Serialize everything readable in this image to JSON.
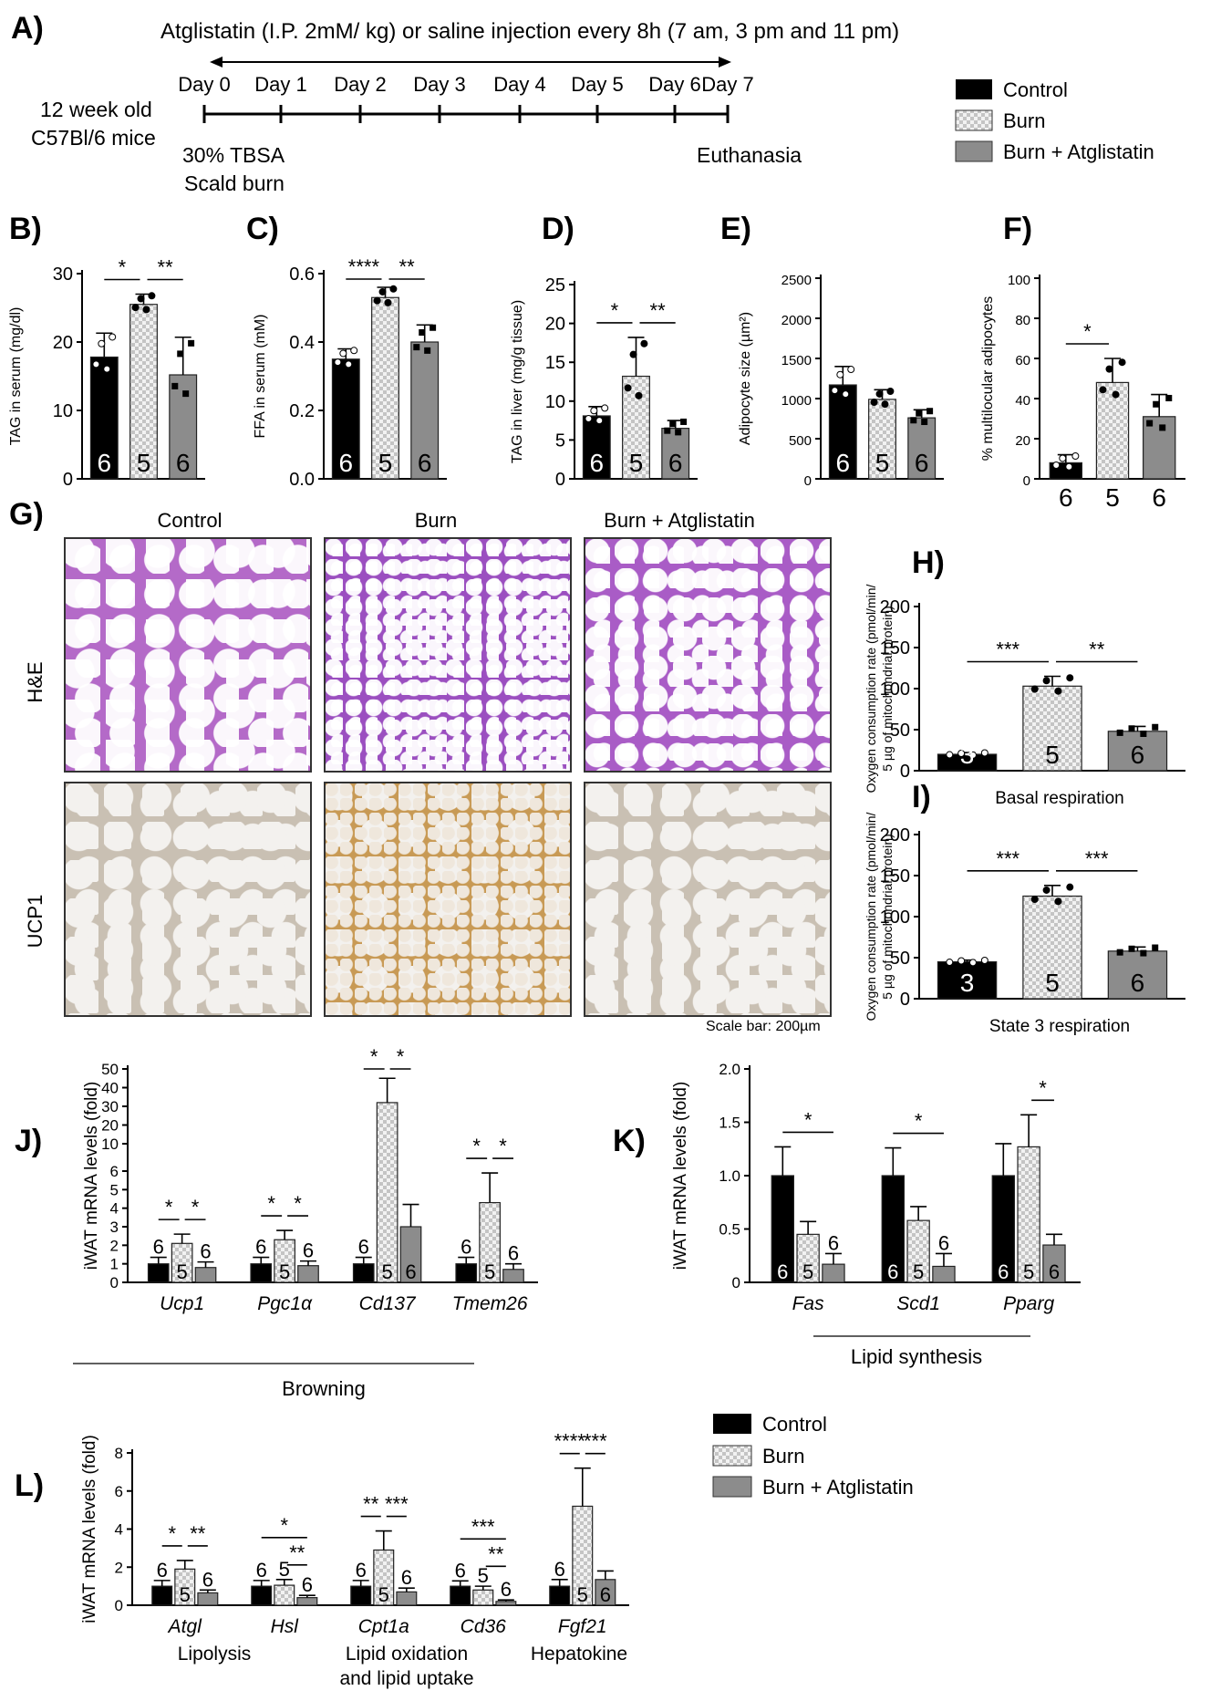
{
  "panel_a": {
    "letter": "A)",
    "treatment": "Atglistatin (I.P. 2mM/ kg) or saline injection every 8h (7 am, 3 pm and 11 pm)",
    "days": [
      "Day 0",
      "Day 1",
      "Day 2",
      "Day 3",
      "Day 4",
      "Day 5",
      "Day 6",
      "Day 7"
    ],
    "mice_line1": "12 week old",
    "mice_line2": "C57Bl/6 mice",
    "burn_line1": "30% TBSA",
    "burn_line2": "Scald burn",
    "end": "Euthanasia"
  },
  "legend_top": [
    "Control",
    "Burn",
    "Burn + Atglistatin"
  ],
  "legend_bottom": [
    "Control",
    "Burn",
    "Burn + Atglistatin"
  ],
  "colors": {
    "control": "#000000",
    "burn": "#e6e6e6",
    "atg": "#8c8c8c"
  },
  "panel_g": {
    "letter": "G)",
    "columns": [
      "Control",
      "Burn",
      "Burn + Atglistatin"
    ],
    "rows": [
      "H&E",
      "UCP1"
    ],
    "scale": "Scale bar: 200µm"
  },
  "chart_data": [
    {
      "id": "B",
      "letter": "B)",
      "type": "bar",
      "ylabel": "TAG in serum (mg/dl)",
      "ylim": [
        0,
        30
      ],
      "ticks": [
        "0",
        "10",
        "20",
        "30"
      ],
      "values": [
        17.8,
        25.5,
        15.2
      ],
      "errors": [
        3.5,
        1.5,
        5.5
      ],
      "n": [
        "6",
        "5",
        "6"
      ],
      "sig": [
        "*",
        "**"
      ]
    },
    {
      "id": "C",
      "letter": "C)",
      "type": "bar",
      "ylabel": "FFA in serum (mM)",
      "ylim": [
        0,
        0.6
      ],
      "ticks": [
        "0.0",
        "0.2",
        "0.4",
        "0.6"
      ],
      "values": [
        0.35,
        0.53,
        0.4
      ],
      "errors": [
        0.03,
        0.03,
        0.05
      ],
      "n": [
        "6",
        "5",
        "6"
      ],
      "sig": [
        "****",
        "**"
      ]
    },
    {
      "id": "D",
      "letter": "D)",
      "type": "bar",
      "ylabel": "TAG in liver (mg/g tissue)",
      "ylim": [
        0,
        25
      ],
      "ticks": [
        "0",
        "5",
        "10",
        "15",
        "20",
        "25"
      ],
      "values": [
        8.1,
        13.2,
        6.5
      ],
      "errors": [
        1.2,
        5.0,
        1.0
      ],
      "n": [
        "6",
        "5",
        "6"
      ],
      "sig": [
        "*",
        "**"
      ]
    },
    {
      "id": "E",
      "letter": "E)",
      "type": "bar",
      "ylabel": "Adipocyte size (µm²)",
      "ylim": [
        0,
        2500
      ],
      "ticks": [
        "0",
        "500",
        "1000",
        "1500",
        "2000",
        "2500"
      ],
      "values": [
        1170,
        990,
        760
      ],
      "errors": [
        230,
        120,
        100
      ],
      "n": [
        "6",
        "5",
        "6"
      ],
      "sig": []
    },
    {
      "id": "F",
      "letter": "F)",
      "type": "bar",
      "ylabel": "% multilocular adipocytes",
      "ylim": [
        0,
        100
      ],
      "ticks": [
        "0",
        "20",
        "40",
        "60",
        "80",
        "100"
      ],
      "values": [
        8,
        48,
        31
      ],
      "errors": [
        4,
        12,
        11
      ],
      "n": [
        "6",
        "5",
        "6"
      ],
      "sig": [
        "*"
      ]
    },
    {
      "id": "H",
      "letter": "H)",
      "type": "bar",
      "ylabel_lines": [
        "Oxygen consumption rate (pmol/min/",
        "5 µg of mitochondrial protein)"
      ],
      "xlabel": "Basal respiration",
      "ylim": [
        0,
        200
      ],
      "ticks": [
        "0",
        "50",
        "100",
        "150",
        "200"
      ],
      "values": [
        20,
        103,
        48
      ],
      "errors": [
        2,
        12,
        6
      ],
      "n": [
        "3",
        "5",
        "6"
      ],
      "sig": [
        "***",
        "**"
      ]
    },
    {
      "id": "I",
      "letter": "I)",
      "type": "bar",
      "ylabel_lines": [
        "Oxygen consumption rate (pmol/min/",
        "5 µg of mitochondrial protein)"
      ],
      "xlabel": "State 3 respiration",
      "ylim": [
        0,
        200
      ],
      "ticks": [
        "0",
        "50",
        "100",
        "150",
        "200"
      ],
      "values": [
        45,
        125,
        58
      ],
      "errors": [
        2,
        13,
        5
      ],
      "n": [
        "3",
        "5",
        "6"
      ],
      "sig": [
        "***",
        "***"
      ]
    },
    {
      "id": "J",
      "letter": "J)",
      "type": "bar",
      "ylabel": "iWAT mRNA levels (fold)",
      "ticks_low": [
        "0",
        "1",
        "2",
        "3",
        "4",
        "5",
        "6"
      ],
      "ticks_high": [
        "10",
        "20",
        "30",
        "40",
        "50"
      ],
      "groups": [
        "Ucp1",
        "Pgc1α",
        "Cd137",
        "Tmem26"
      ],
      "category": "Browning",
      "values": [
        [
          1,
          2.1,
          0.8
        ],
        [
          1,
          2.3,
          0.9
        ],
        [
          1,
          32,
          3
        ],
        [
          1,
          4.3,
          0.7
        ]
      ],
      "errors": [
        [
          0.35,
          0.5,
          0.3
        ],
        [
          0.35,
          0.5,
          0.25
        ],
        [
          0.35,
          13,
          1.2
        ],
        [
          0.35,
          1.6,
          0.3
        ]
      ],
      "n": [
        "6",
        "5",
        "6"
      ],
      "sig": [
        "*",
        "*",
        "*",
        "*",
        "*",
        "*",
        "*",
        "*"
      ]
    },
    {
      "id": "K",
      "letter": "K)",
      "type": "bar",
      "ylabel": "iWAT mRNA levels (fold)",
      "ylim": [
        0,
        2
      ],
      "ticks": [
        "0",
        "0.5",
        "1.0",
        "1.5",
        "2.0"
      ],
      "groups": [
        "Fas",
        "Scd1",
        "Pparg"
      ],
      "category": "Lipid synthesis",
      "values": [
        [
          1,
          0.45,
          0.17
        ],
        [
          1,
          0.58,
          0.15
        ],
        [
          1,
          1.27,
          0.35
        ]
      ],
      "errors": [
        [
          0.27,
          0.12,
          0.1
        ],
        [
          0.26,
          0.13,
          0.12
        ],
        [
          0.3,
          0.3,
          0.1
        ]
      ],
      "n": [
        "6",
        "5",
        "6"
      ],
      "sig": [
        "*",
        "*",
        "*"
      ]
    },
    {
      "id": "L",
      "letter": "L)",
      "type": "bar",
      "ylabel": "iWAT mRNA levels (fold)",
      "ylim": [
        0,
        8
      ],
      "ticks": [
        "0",
        "2",
        "4",
        "6",
        "8"
      ],
      "groups": [
        "Atgl",
        "Hsl",
        "Cpt1a",
        "Cd36",
        "Fgf21"
      ],
      "categories": [
        "Lipolysis",
        "Lipid oxidation",
        "and lipid uptake",
        "Hepatokine"
      ],
      "values": [
        [
          1,
          1.9,
          0.65
        ],
        [
          1,
          1.05,
          0.4
        ],
        [
          1,
          2.9,
          0.7
        ],
        [
          1,
          0.8,
          0.2
        ],
        [
          1,
          5.2,
          1.35
        ]
      ],
      "errors": [
        [
          0.3,
          0.45,
          0.15
        ],
        [
          0.3,
          0.3,
          0.12
        ],
        [
          0.3,
          1.0,
          0.2
        ],
        [
          0.28,
          0.2,
          0.08
        ],
        [
          0.35,
          2.0,
          0.45
        ]
      ],
      "n": [
        "6",
        "5",
        "6"
      ],
      "sig": [
        "*",
        "**",
        "*",
        "**",
        "**",
        "***",
        "***",
        "**",
        "****",
        "***"
      ]
    }
  ]
}
